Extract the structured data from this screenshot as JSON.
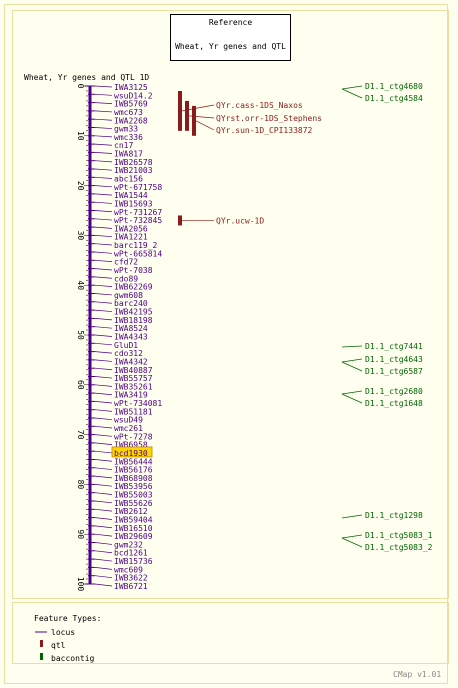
{
  "reference": {
    "title": "Reference",
    "subtitle": "Wheat, Yr genes and QTL"
  },
  "map_title": "Wheat, Yr genes and QTL 1D",
  "colors": {
    "chromosome": "#4b0082",
    "locus": "#4b0082",
    "qtl": "#8b1a1a",
    "contig": "#006400",
    "highlight": "#ffd700",
    "border": "#e8e0a0"
  },
  "axis": {
    "min": 0,
    "max": 100,
    "tick_labels": [
      "0",
      "10",
      "20",
      "30",
      "40",
      "50",
      "60",
      "70",
      "80",
      "90",
      "100"
    ]
  },
  "loci": [
    "IWA3125",
    "wsuD14.2",
    "IWB5769",
    "wmc673",
    "IWA2268",
    "gwm33",
    "wmc336",
    "cn17",
    "IWA817",
    "IWB26578",
    "IWB21003",
    "abc156",
    "wPt-671758",
    "IWA1544",
    "IWB15693",
    "wPt-731267",
    "wPt-732845",
    "IWA2056",
    "IWA1221",
    "barc119_2",
    "wPt-665814",
    "cfd72",
    "wPt-7038",
    "cdo89",
    "IWB62269",
    "gwm608",
    "barc240",
    "IWB42195",
    "IWB18198",
    "IWA8524",
    "IWA4343",
    "GluD1",
    "cdo312",
    "IWA4342",
    "IWB40887",
    "IWB55757",
    "IWB35261",
    "IWA3419",
    "wPt-734081",
    "IWB51181",
    "wsuD49",
    "wmc261",
    "wPt-7278",
    "IWB6958",
    "bcd1930",
    "IWB56444",
    "IWB56176",
    "IWB68908",
    "IWB53956",
    "IWB55003",
    "IWB55626",
    "IWB2612",
    "IWB59404",
    "IWB16510",
    "IWB29609",
    "gwm232",
    "bcd1261",
    "IWB15736",
    "wmc609",
    "IWB3622",
    "IWB6721"
  ],
  "highlighted_locus": "bcd1930",
  "qtls": [
    {
      "label": "QYr.cass-1DS_Naxos",
      "start": 1,
      "end": 9
    },
    {
      "label": "QYrst.orr-1DS_Stephens",
      "start": 3,
      "end": 9
    },
    {
      "label": "QYr.sun-1D_CPI133872",
      "start": 4,
      "end": 10
    },
    {
      "label": "QYr.ucw-1D",
      "start": 26,
      "end": 28
    }
  ],
  "contigs": [
    "D1.1_ctg4680",
    "D1.1_ctg4584",
    "D1.1_ctg7441",
    "D1.1_ctg4643",
    "D1.1_ctg6587",
    "D1.1_ctg2680",
    "D1.1_ctg1648",
    "D1.1_ctg1298",
    "D1.1_ctg5083_1",
    "D1.1_ctg5083_2"
  ],
  "legend": {
    "title": "Feature Types:",
    "items": [
      {
        "label": "locus",
        "icon": "line"
      },
      {
        "label": "qtl",
        "icon": "box"
      },
      {
        "label": "baccontig",
        "icon": "box"
      }
    ]
  },
  "version": "CMap v1.01"
}
